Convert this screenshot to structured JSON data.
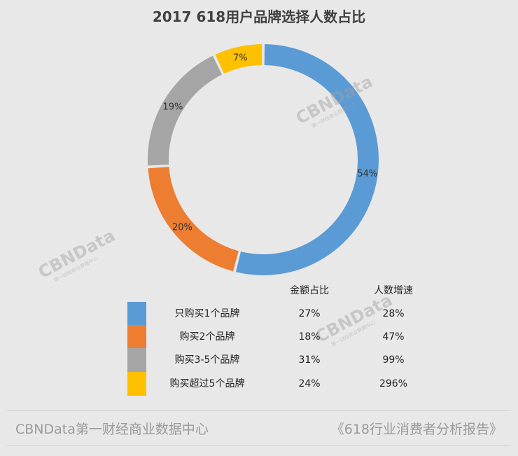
{
  "chart_data": {
    "type": "pie",
    "title": "2017 618用户品牌选择人数占比",
    "categories": [
      "只购买1个品牌",
      "购买2个品牌",
      "购买3-5个品牌",
      "购买超过5个品牌"
    ],
    "values": [
      54,
      20,
      19,
      7
    ],
    "value_labels": [
      "54%",
      "20%",
      "19%",
      "7%"
    ],
    "colors": [
      "#5b9bd5",
      "#ed7d31",
      "#a5a5a5",
      "#ffc000"
    ]
  },
  "legend_table": {
    "header_amount": "金额占比",
    "header_growth": "人数增速",
    "rows": [
      {
        "label": "只购买1个品牌",
        "amount": "27%",
        "growth": "28%",
        "color": "#5b9bd5"
      },
      {
        "label": "购买2个品牌",
        "amount": "18%",
        "growth": "47%",
        "color": "#ed7d31"
      },
      {
        "label": "购买3-5个品牌",
        "amount": "31%",
        "growth": "99%",
        "color": "#a5a5a5"
      },
      {
        "label": "购买超过5个品牌",
        "amount": "24%",
        "growth": "296%",
        "color": "#ffc000"
      }
    ]
  },
  "watermark": {
    "brand": "CBNData",
    "sub": "第一财经商业数据中心"
  },
  "footer": {
    "source": "CBNData第一财经商业数据中心",
    "report": "《618行业消费者分析报告》"
  }
}
